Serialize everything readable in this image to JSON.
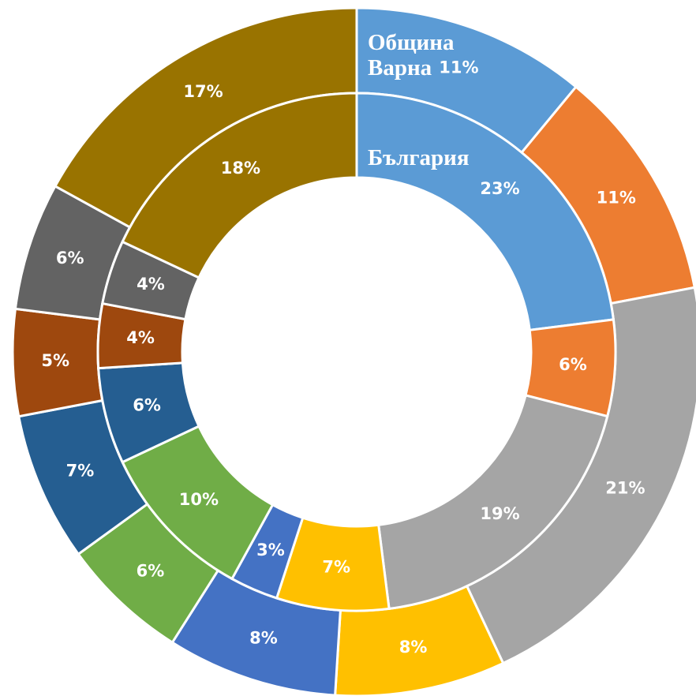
{
  "chart_data": {
    "type": "doughnut",
    "colors": [
      "#5b9bd5",
      "#ed7d31",
      "#a5a5a5",
      "#ffc000",
      "#4472c4",
      "#70ad47",
      "#255e91",
      "#9e480e",
      "#636363",
      "#997300"
    ],
    "series": [
      {
        "name": "Община Варна",
        "values": [
          11,
          11,
          21,
          8,
          8,
          6,
          7,
          5,
          6,
          17
        ],
        "value_labels": [
          "11%",
          "11%",
          "21%",
          "8%",
          "8%",
          "6%",
          "7%",
          "5%",
          "6%",
          "17%"
        ]
      },
      {
        "name": "България",
        "values": [
          23,
          6,
          19,
          7,
          3,
          10,
          6,
          4,
          4,
          18
        ],
        "value_labels": [
          "23%",
          "6%",
          "19%",
          "7%",
          "3%",
          "10%",
          "6%",
          "4%",
          "4%",
          "18%"
        ]
      }
    ]
  }
}
